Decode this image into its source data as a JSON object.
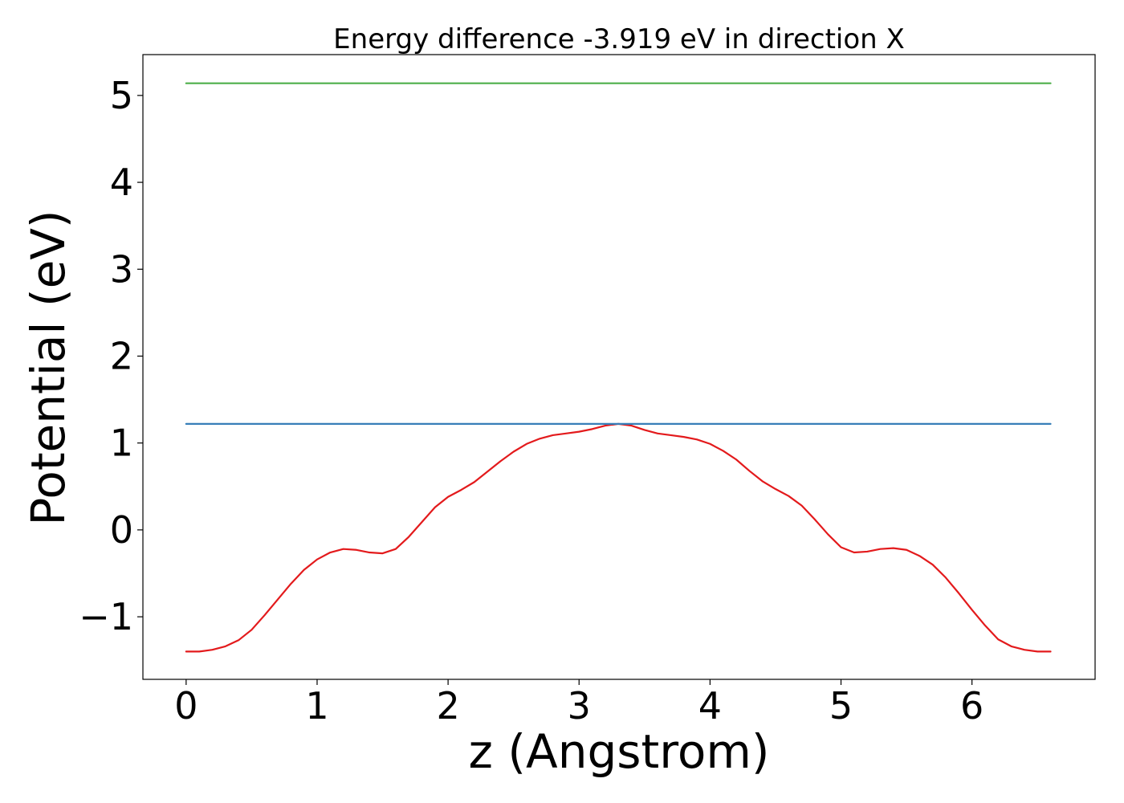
{
  "chart_data": {
    "type": "line",
    "title": "Energy difference -3.919 eV in direction X",
    "xlabel": "z (Angstrom)",
    "ylabel": "Potential (eV)",
    "xlim": [
      -0.33,
      6.94
    ],
    "ylim": [
      -1.72,
      5.47
    ],
    "xticks": [
      0,
      1,
      2,
      3,
      4,
      5,
      6
    ],
    "yticks": [
      -1,
      0,
      1,
      2,
      3,
      4,
      5
    ],
    "xtick_labels": [
      "0",
      "1",
      "2",
      "3",
      "4",
      "5",
      "6"
    ],
    "ytick_labels": [
      "−1",
      "0",
      "1",
      "2",
      "3",
      "4",
      "5"
    ],
    "grid": false,
    "legend": "none",
    "series": [
      {
        "color": "#e31a1c",
        "x": [
          0.0,
          0.1,
          0.2,
          0.3,
          0.4,
          0.5,
          0.6,
          0.7,
          0.8,
          0.9,
          1.0,
          1.1,
          1.2,
          1.3,
          1.4,
          1.5,
          1.6,
          1.7,
          1.8,
          1.9,
          2.0,
          2.1,
          2.2,
          2.3,
          2.4,
          2.5,
          2.6,
          2.7,
          2.8,
          2.9,
          3.0,
          3.1,
          3.2,
          3.3,
          3.4,
          3.5,
          3.6,
          3.7,
          3.8,
          3.9,
          4.0,
          4.1,
          4.2,
          4.3,
          4.4,
          4.5,
          4.6,
          4.7,
          4.8,
          4.9,
          5.0,
          5.1,
          5.2,
          5.3,
          5.4,
          5.5,
          5.6,
          5.7,
          5.8,
          5.9,
          6.0,
          6.1,
          6.2,
          6.3,
          6.4,
          6.5,
          6.6
        ],
        "y": [
          -1.4,
          -1.4,
          -1.38,
          -1.34,
          -1.27,
          -1.15,
          -0.98,
          -0.8,
          -0.62,
          -0.46,
          -0.34,
          -0.26,
          -0.22,
          -0.23,
          -0.26,
          -0.27,
          -0.22,
          -0.08,
          0.09,
          0.26,
          0.38,
          0.46,
          0.55,
          0.67,
          0.79,
          0.9,
          0.99,
          1.05,
          1.09,
          1.11,
          1.13,
          1.16,
          1.2,
          1.22,
          1.2,
          1.15,
          1.11,
          1.09,
          1.07,
          1.04,
          0.99,
          0.91,
          0.81,
          0.68,
          0.56,
          0.47,
          0.39,
          0.28,
          0.12,
          -0.05,
          -0.2,
          -0.26,
          -0.25,
          -0.22,
          -0.21,
          -0.23,
          -0.3,
          -0.4,
          -0.55,
          -0.73,
          -0.92,
          -1.1,
          -1.26,
          -1.34,
          -1.38,
          -1.4,
          -1.4
        ]
      },
      {
        "color": "#377eb8",
        "x": [
          0.0,
          6.6
        ],
        "y": [
          1.22,
          1.22
        ]
      },
      {
        "color": "#4daf4a",
        "x": [
          0.0,
          6.6
        ],
        "y": [
          5.14,
          5.14
        ]
      }
    ]
  }
}
